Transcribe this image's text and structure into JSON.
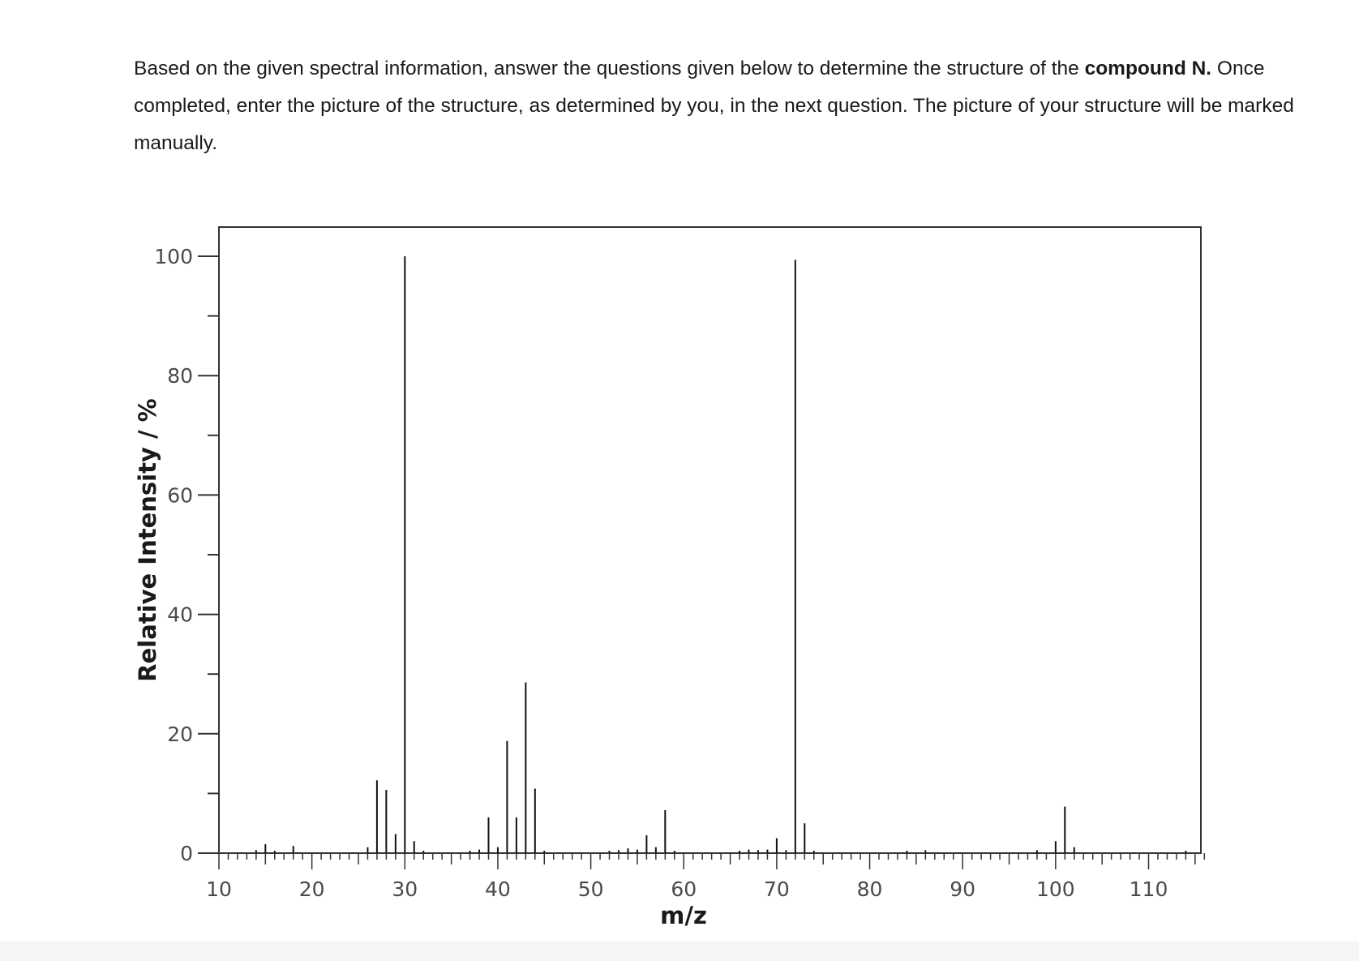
{
  "question": {
    "text_before_bold": "Based on the given spectral information, answer the questions given below to determine the structure of the ",
    "bold_text": "compound N.",
    "text_after_bold": " Once completed, enter the picture of the structure, as determined by you, in the next question. The picture of your structure will be marked manually."
  },
  "chart_data": {
    "type": "bar",
    "xlabel": "m/z",
    "ylabel": "Relative Intensity / %",
    "xlim": [
      10,
      116
    ],
    "ylim": [
      0,
      105
    ],
    "x_ticks": [
      10,
      20,
      30,
      40,
      50,
      60,
      70,
      80,
      90,
      100,
      110
    ],
    "y_ticks": [
      0,
      20,
      40,
      60,
      80,
      100
    ],
    "grid": false,
    "peaks": [
      {
        "x": 14,
        "y": 0.5
      },
      {
        "x": 15,
        "y": 1.5
      },
      {
        "x": 16,
        "y": 0.4
      },
      {
        "x": 18,
        "y": 1.2
      },
      {
        "x": 26,
        "y": 1.0
      },
      {
        "x": 27,
        "y": 12.2
      },
      {
        "x": 28,
        "y": 10.6
      },
      {
        "x": 29,
        "y": 3.2
      },
      {
        "x": 30,
        "y": 100
      },
      {
        "x": 31,
        "y": 2.0
      },
      {
        "x": 32,
        "y": 0.4
      },
      {
        "x": 37,
        "y": 0.4
      },
      {
        "x": 38,
        "y": 0.6
      },
      {
        "x": 39,
        "y": 6.0
      },
      {
        "x": 40,
        "y": 1.0
      },
      {
        "x": 41,
        "y": 18.8
      },
      {
        "x": 42,
        "y": 6.0
      },
      {
        "x": 43,
        "y": 28.6
      },
      {
        "x": 44,
        "y": 10.8
      },
      {
        "x": 45,
        "y": 0.4
      },
      {
        "x": 52,
        "y": 0.4
      },
      {
        "x": 53,
        "y": 0.5
      },
      {
        "x": 54,
        "y": 0.8
      },
      {
        "x": 55,
        "y": 0.6
      },
      {
        "x": 56,
        "y": 3.0
      },
      {
        "x": 57,
        "y": 1.0
      },
      {
        "x": 58,
        "y": 7.2
      },
      {
        "x": 59,
        "y": 0.4
      },
      {
        "x": 66,
        "y": 0.4
      },
      {
        "x": 67,
        "y": 0.6
      },
      {
        "x": 68,
        "y": 0.5
      },
      {
        "x": 69,
        "y": 0.6
      },
      {
        "x": 70,
        "y": 2.5
      },
      {
        "x": 71,
        "y": 0.5
      },
      {
        "x": 72,
        "y": 99.4
      },
      {
        "x": 73,
        "y": 5.0
      },
      {
        "x": 74,
        "y": 0.4
      },
      {
        "x": 84,
        "y": 0.4
      },
      {
        "x": 86,
        "y": 0.5
      },
      {
        "x": 98,
        "y": 0.5
      },
      {
        "x": 100,
        "y": 2.0
      },
      {
        "x": 101,
        "y": 7.8
      },
      {
        "x": 102,
        "y": 1.0
      },
      {
        "x": 114,
        "y": 0.4
      }
    ]
  }
}
